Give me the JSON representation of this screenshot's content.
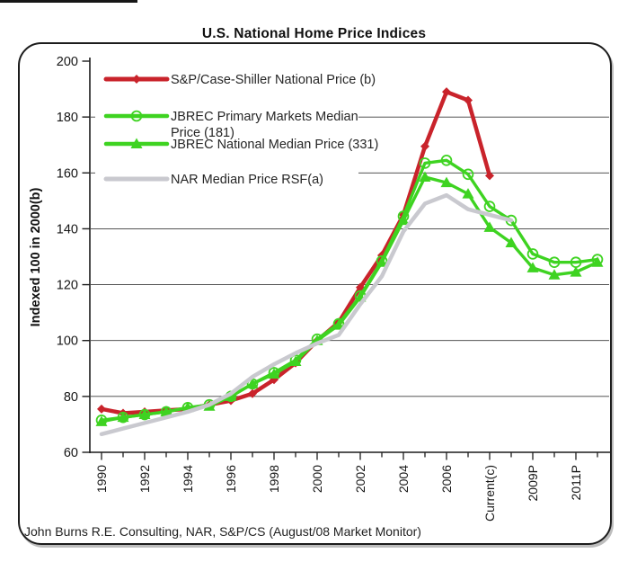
{
  "figure": {
    "footer": "John Burns R.E. Consulting, NAR, S&P/CS (August/08 Market Monitor)"
  },
  "chart_data": {
    "type": "line",
    "title": "U.S. National Home Price Indices",
    "ylabel": "Indexed 100 in 2000(b)",
    "xlabel": "",
    "ylim": [
      60,
      200
    ],
    "ytick_interval": 20,
    "ytick_labels": [
      "200",
      "180",
      "160",
      "140",
      "120",
      "100",
      "80",
      "60"
    ],
    "grid": "horizontal gridlines at every 20 units",
    "legend_position": "top-left inside plot",
    "x_slots": 24,
    "x_tick_labels": [
      "1990",
      "1992",
      "1994",
      "1996",
      "1998",
      "2000",
      "2002",
      "2004",
      "2006",
      "Current(c)",
      "2009P",
      "2011P"
    ],
    "series": [
      {
        "name": "S&P/Case-Shiller National Price (b)",
        "legend_lines": [
          "S&P/Case-Shiller National Price (b)"
        ],
        "color": "#c9232b",
        "marker": "diamond",
        "values": [
          75.5,
          74,
          74.5,
          75,
          75.5,
          77,
          78.5,
          81,
          86,
          92,
          100,
          106.5,
          119,
          130.5,
          145,
          169.5,
          189,
          186,
          159
        ]
      },
      {
        "name": "JBREC Primary Markets Median Price (181)",
        "legend_lines": [
          "JBREC Primary Markets Median",
          "Price (181)"
        ],
        "color": "#3ed321",
        "marker": "circle-open",
        "values": [
          71.5,
          72.5,
          73.5,
          74.5,
          76,
          77,
          80,
          84.5,
          88.5,
          93,
          100.5,
          106,
          116,
          128.5,
          144.5,
          163.5,
          164.5,
          159.5,
          148,
          143,
          131,
          128,
          128,
          129
        ]
      },
      {
        "name": "JBREC National Median Price (331)",
        "legend_lines": [
          "JBREC National Median Price (331)"
        ],
        "color": "#3ed321",
        "marker": "triangle",
        "values": [
          71,
          72.5,
          73.5,
          74.5,
          76,
          76.5,
          80,
          84.5,
          88,
          92.5,
          100,
          105.5,
          115.5,
          128,
          143,
          158.5,
          156.5,
          152.5,
          140.5,
          135,
          126,
          123.5,
          124.5,
          128
        ]
      },
      {
        "name": "NAR Median Price RSF(a)",
        "legend_lines": [
          "NAR Median Price RSF(a)"
        ],
        "color": "#c9c9cf",
        "marker": "none",
        "values": [
          66.5,
          68.5,
          70.5,
          72.5,
          74.5,
          77,
          81,
          87,
          91.5,
          95.5,
          99,
          102,
          113,
          123,
          139,
          149,
          152,
          147,
          145,
          143
        ]
      }
    ]
  }
}
